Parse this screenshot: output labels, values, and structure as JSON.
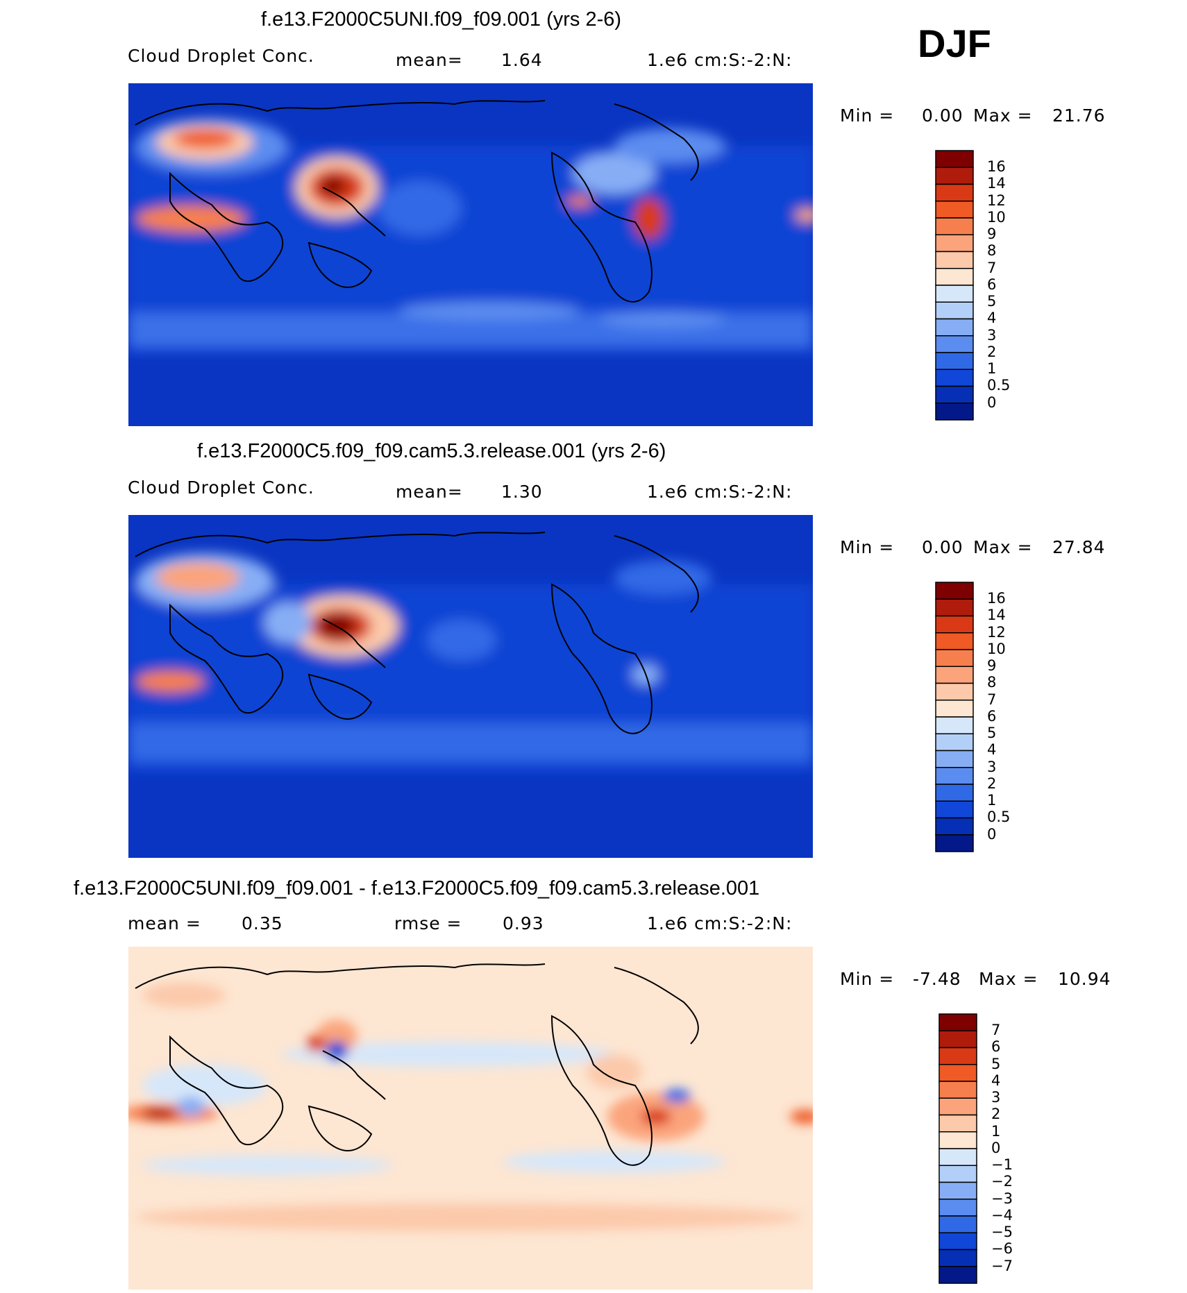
{
  "season": "DJF",
  "panels": [
    {
      "title": "f.e13.F2000C5UNI.f09_f09.001 (yrs 2-6)",
      "variable": "Cloud Droplet Conc.",
      "stat_label": "mean=",
      "stat_value": "1.64",
      "units": "1.e6 cm:S:-2:N:",
      "min_label": "Min =",
      "min_value": "0.00",
      "max_label": "Max =",
      "max_value": "21.76",
      "colorbar_labels": [
        "16",
        "14",
        "12",
        "10",
        "9",
        "8",
        "7",
        "6",
        "5",
        "4",
        "3",
        "2",
        "1",
        "0.5",
        "0"
      ],
      "colorbar_colors": [
        "#7f0000",
        "#b01c0c",
        "#d93a15",
        "#ef5a25",
        "#f77f4e",
        "#fba47c",
        "#fcc9aa",
        "#fde6d2",
        "#d6e7fa",
        "#b2cff8",
        "#87aef5",
        "#5b8cef",
        "#3069e6",
        "#1147d8",
        "#0530b6",
        "#03198a"
      ]
    },
    {
      "title": "f.e13.F2000C5.f09_f09.cam5.3.release.001 (yrs 2-6)",
      "variable": "Cloud Droplet Conc.",
      "stat_label": "mean=",
      "stat_value": "1.30",
      "units": "1.e6 cm:S:-2:N:",
      "min_label": "Min =",
      "min_value": "0.00",
      "max_label": "Max =",
      "max_value": "27.84",
      "colorbar_labels": [
        "16",
        "14",
        "12",
        "10",
        "9",
        "8",
        "7",
        "6",
        "5",
        "4",
        "3",
        "2",
        "1",
        "0.5",
        "0"
      ],
      "colorbar_colors": [
        "#7f0000",
        "#b01c0c",
        "#d93a15",
        "#ef5a25",
        "#f77f4e",
        "#fba47c",
        "#fcc9aa",
        "#fde6d2",
        "#d6e7fa",
        "#b2cff8",
        "#87aef5",
        "#5b8cef",
        "#3069e6",
        "#1147d8",
        "#0530b6",
        "#03198a"
      ]
    },
    {
      "title": "f.e13.F2000C5UNI.f09_f09.001 - f.e13.F2000C5.f09_f09.cam5.3.release.001",
      "stat_label": "mean =",
      "stat_value": "0.35",
      "stat2_label": "rmse =",
      "stat2_value": "0.93",
      "units": "1.e6 cm:S:-2:N:",
      "min_label": "Min =",
      "min_value": "-7.48",
      "max_label": "Max =",
      "max_value": "10.94",
      "colorbar_labels": [
        "7",
        "6",
        "5",
        "4",
        "3",
        "2",
        "1",
        "0",
        "-1",
        "-2",
        "-3",
        "-4",
        "-5",
        "-6",
        "-7"
      ],
      "colorbar_colors": [
        "#7f0000",
        "#b01c0c",
        "#d93a15",
        "#ef5a25",
        "#f77f4e",
        "#fba47c",
        "#fcc9aa",
        "#fde6d2",
        "#d6e7fa",
        "#b2cff8",
        "#87aef5",
        "#5b8cef",
        "#3069e6",
        "#1147d8",
        "#0530b6",
        "#03198a"
      ]
    }
  ]
}
